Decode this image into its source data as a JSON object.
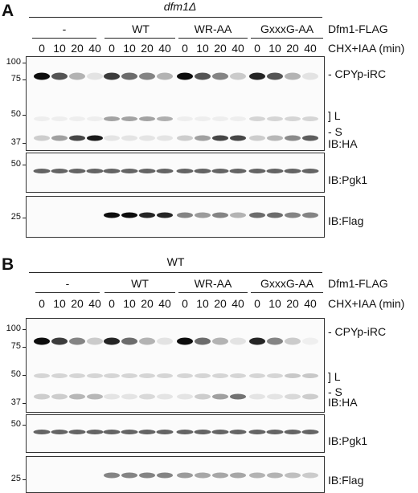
{
  "panels": [
    {
      "letter": "A",
      "genotype": "dfm1Δ",
      "genotype_italic": true,
      "groups": [
        "-",
        "WT",
        "WR-AA",
        "GxxxG-AA"
      ],
      "construct_label": "Dfm1-FLAG",
      "timepoints": [
        "0",
        "10",
        "20",
        "40"
      ],
      "time_label": "CHX+IAA (min)",
      "markers_main": [
        "100",
        "75",
        "50",
        "37"
      ],
      "markers_pgk1": [
        "50"
      ],
      "markers_flag": [
        "25"
      ],
      "band_labels": {
        "cpy": "- CPYp-iRC",
        "l": "L",
        "s": "- S"
      },
      "ib_labels": {
        "ha": "IB:HA",
        "pgk1": "IB:Pgk1",
        "flag": "IB:Flag"
      },
      "cpy_intensity": [
        [
          1.0,
          0.7,
          0.3,
          0.1
        ],
        [
          0.8,
          0.6,
          0.5,
          0.3
        ],
        [
          1.0,
          0.7,
          0.5,
          0.2
        ],
        [
          0.9,
          0.7,
          0.3,
          0.1
        ]
      ],
      "s_intensity": [
        [
          0.2,
          0.4,
          0.8,
          1.0
        ],
        [
          0.1,
          0.1,
          0.1,
          0.1
        ],
        [
          0.2,
          0.4,
          0.8,
          0.8
        ],
        [
          0.2,
          0.3,
          0.5,
          0.7
        ]
      ],
      "l_intensity": [
        [
          0.05,
          0.05,
          0.05,
          0.05
        ],
        [
          0.35,
          0.35,
          0.35,
          0.3
        ],
        [
          0.05,
          0.05,
          0.05,
          0.05
        ],
        [
          0.15,
          0.15,
          0.15,
          0.15
        ]
      ],
      "flag_intensity": [
        [
          0,
          0,
          0,
          0
        ],
        [
          1.0,
          1.0,
          0.9,
          0.9
        ],
        [
          0.5,
          0.4,
          0.5,
          0.3
        ],
        [
          0.6,
          0.6,
          0.5,
          0.5
        ]
      ]
    },
    {
      "letter": "B",
      "genotype": "WT",
      "genotype_italic": false,
      "groups": [
        "-",
        "WT",
        "WR-AA",
        "GxxxG-AA"
      ],
      "construct_label": "Dfm1-FLAG",
      "timepoints": [
        "0",
        "10",
        "20",
        "40"
      ],
      "time_label": "CHX+IAA (min)",
      "markers_main": [
        "100",
        "75",
        "50",
        "37"
      ],
      "markers_pgk1": [
        "50"
      ],
      "markers_flag": [
        "25"
      ],
      "band_labels": {
        "cpy": "- CPYp-iRC",
        "l": "L",
        "s": "- S"
      },
      "ib_labels": {
        "ha": "IB:HA",
        "pgk1": "IB:Pgk1",
        "flag": "IB:Flag"
      },
      "cpy_intensity": [
        [
          1.0,
          0.8,
          0.5,
          0.2
        ],
        [
          0.9,
          0.6,
          0.3,
          0.1
        ],
        [
          1.0,
          0.6,
          0.3,
          0.1
        ],
        [
          0.9,
          0.5,
          0.2,
          0.05
        ]
      ],
      "s_intensity": [
        [
          0.2,
          0.2,
          0.3,
          0.3
        ],
        [
          0.1,
          0.1,
          0.15,
          0.1
        ],
        [
          0.1,
          0.2,
          0.4,
          0.6
        ],
        [
          0.1,
          0.1,
          0.15,
          0.2
        ]
      ],
      "l_intensity": [
        [
          0.15,
          0.15,
          0.15,
          0.15
        ],
        [
          0.15,
          0.15,
          0.15,
          0.15
        ],
        [
          0.15,
          0.15,
          0.15,
          0.15
        ],
        [
          0.15,
          0.15,
          0.2,
          0.2
        ]
      ],
      "flag_intensity": [
        [
          0,
          0,
          0,
          0
        ],
        [
          0.5,
          0.5,
          0.5,
          0.5
        ],
        [
          0.4,
          0.35,
          0.35,
          0.35
        ],
        [
          0.3,
          0.3,
          0.25,
          0.2
        ]
      ]
    }
  ]
}
